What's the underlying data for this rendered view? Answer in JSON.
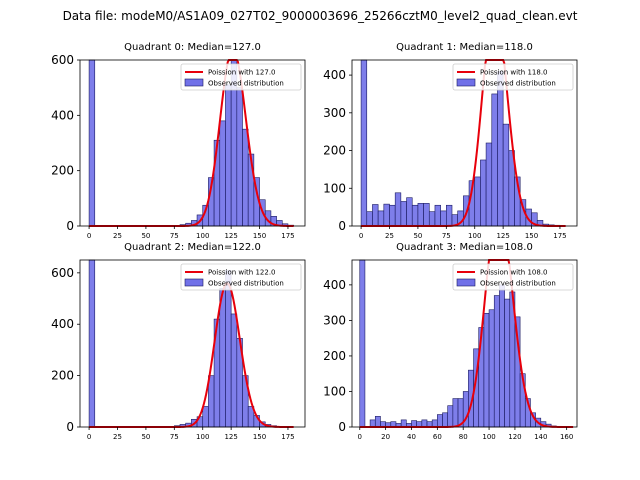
{
  "figure": {
    "suptitle": "Data file: modeM0/AS1A09_027T02_9000003696_25266cztM0_level2_quad_clean.evt"
  },
  "colors": {
    "hist_fill": "#7070e8",
    "hist_edge": "#1a1a60",
    "poisson_line": "#e8000b"
  },
  "chart_data": [
    {
      "type": "bar",
      "title": "Quadrant 0: Median=127.0",
      "xlim": [
        -8,
        190
      ],
      "ylim": [
        0,
        600
      ],
      "xticks": [
        0,
        25,
        50,
        75,
        100,
        125,
        150,
        175
      ],
      "yticks": [
        0,
        200,
        400,
        600
      ],
      "bin_width": 5,
      "bins": [
        0,
        80,
        85,
        90,
        95,
        100,
        105,
        110,
        115,
        120,
        125,
        130,
        135,
        140,
        145,
        150,
        155,
        160,
        165,
        170,
        175
      ],
      "counts": [
        700,
        5,
        10,
        20,
        40,
        75,
        175,
        310,
        380,
        510,
        600,
        500,
        350,
        260,
        175,
        95,
        55,
        35,
        20,
        8,
        3
      ],
      "poisson_mean": 127.0,
      "legend": {
        "line": "Poission with 127.0",
        "hist": "Observed distribution",
        "position": "upper right"
      }
    },
    {
      "type": "bar",
      "title": "Quadrant 1: Median=118.0",
      "xlim": [
        -8,
        190
      ],
      "ylim": [
        0,
        440
      ],
      "xticks": [
        0,
        25,
        50,
        75,
        100,
        125,
        150,
        175
      ],
      "yticks": [
        0,
        100,
        200,
        300,
        400
      ],
      "bin_width": 5,
      "bins": [
        0,
        5,
        10,
        15,
        20,
        25,
        30,
        35,
        40,
        45,
        50,
        55,
        60,
        65,
        70,
        75,
        80,
        85,
        90,
        95,
        100,
        105,
        110,
        115,
        120,
        125,
        130,
        135,
        140,
        145,
        150,
        155,
        160,
        165,
        170
      ],
      "counts": [
        440,
        38,
        57,
        40,
        58,
        55,
        88,
        65,
        75,
        55,
        60,
        60,
        38,
        55,
        40,
        55,
        30,
        40,
        80,
        120,
        130,
        175,
        220,
        350,
        410,
        270,
        200,
        130,
        70,
        45,
        35,
        15,
        5,
        3,
        2
      ],
      "poisson_mean": 118.0,
      "legend": {
        "line": "Poission with 118.0",
        "hist": "Observed distribution",
        "position": "upper right"
      }
    },
    {
      "type": "bar",
      "title": "Quadrant 2: Median=122.0",
      "xlim": [
        -8,
        190
      ],
      "ylim": [
        0,
        650
      ],
      "xticks": [
        0,
        25,
        50,
        75,
        100,
        125,
        150,
        175
      ],
      "yticks": [
        0,
        200,
        400,
        600
      ],
      "bin_width": 5,
      "bins": [
        0,
        75,
        80,
        85,
        90,
        95,
        100,
        105,
        110,
        115,
        120,
        125,
        130,
        135,
        140,
        145,
        150,
        155,
        160,
        165,
        170
      ],
      "counts": [
        650,
        5,
        10,
        15,
        30,
        40,
        80,
        200,
        420,
        540,
        610,
        440,
        345,
        200,
        80,
        45,
        20,
        10,
        5,
        2,
        1
      ],
      "poisson_mean": 122.0,
      "legend": {
        "line": "Poission with 122.0",
        "hist": "Observed distribution",
        "position": "upper right"
      }
    },
    {
      "type": "bar",
      "title": "Quadrant 3: Median=108.0",
      "xlim": [
        -6,
        168
      ],
      "ylim": [
        0,
        470
      ],
      "xticks": [
        0,
        20,
        40,
        60,
        80,
        100,
        120,
        140,
        160
      ],
      "yticks": [
        0,
        100,
        200,
        300,
        400
      ],
      "bin_width": 4,
      "bins": [
        0,
        8,
        12,
        16,
        20,
        24,
        28,
        32,
        36,
        40,
        44,
        48,
        52,
        56,
        60,
        64,
        68,
        72,
        76,
        80,
        84,
        88,
        92,
        96,
        100,
        104,
        108,
        112,
        116,
        120,
        124,
        128,
        132,
        136,
        140,
        144,
        148,
        152
      ],
      "counts": [
        470,
        20,
        30,
        15,
        12,
        15,
        10,
        20,
        10,
        18,
        15,
        20,
        15,
        20,
        35,
        40,
        60,
        80,
        80,
        100,
        160,
        220,
        280,
        320,
        330,
        370,
        400,
        360,
        380,
        310,
        150,
        80,
        40,
        25,
        15,
        8,
        3,
        2
      ],
      "poisson_mean": 108.0,
      "legend": {
        "line": "Poission with 108.0",
        "hist": "Observed distribution",
        "position": "upper right"
      }
    }
  ]
}
